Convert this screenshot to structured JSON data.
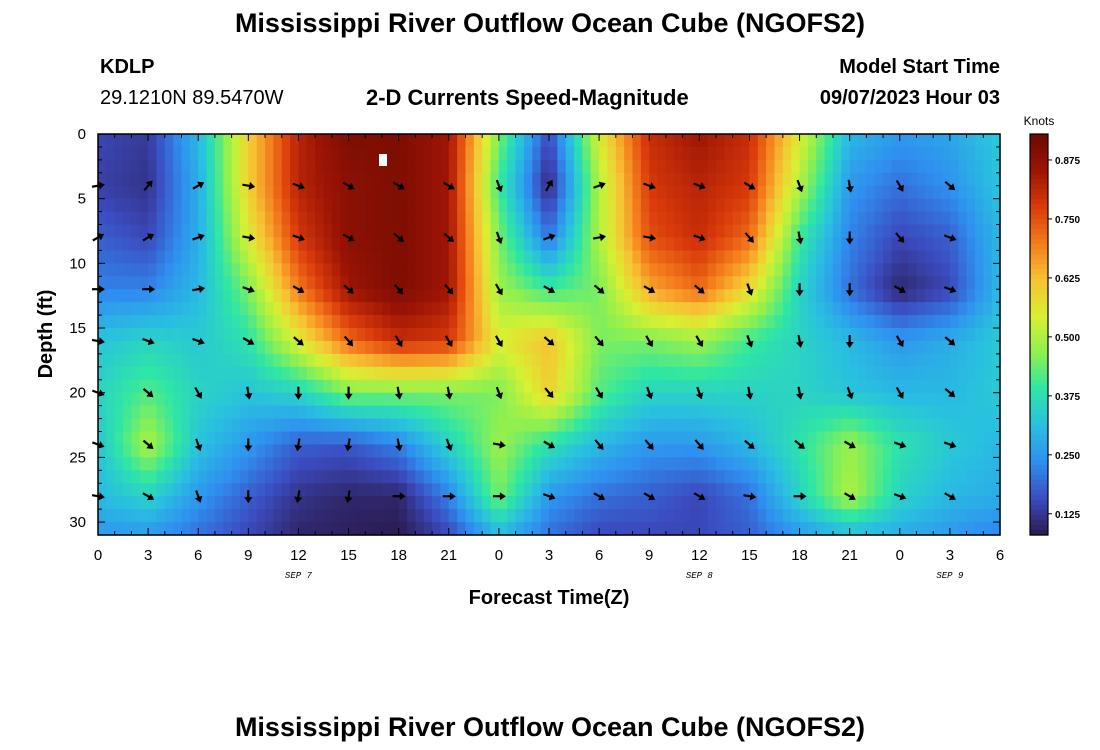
{
  "header": {
    "title": "Mississippi River Outflow Ocean Cube (NGOFS2)",
    "station": "KDLP",
    "coords": "29.1210N  89.5470W",
    "subtitle": "2-D Currents Speed-Magnitude",
    "model_start_label": "Model Start Time",
    "model_start_value": "09/07/2023 Hour 03"
  },
  "footer": {
    "title": "Mississippi River Outflow Ocean Cube (NGOFS2)"
  },
  "chart_data": {
    "type": "heatmap",
    "xlabel": "Forecast Time(Z)",
    "ylabel": "Depth (ft)",
    "x_tick_labels": [
      "0",
      "3",
      "6",
      "9",
      "12",
      "15",
      "18",
      "21",
      "0",
      "3",
      "6",
      "9",
      "12",
      "15",
      "18",
      "21",
      "0",
      "3",
      "6"
    ],
    "date_labels": [
      {
        "label": "SEP 7",
        "hour_index": 12
      },
      {
        "label": "SEP 8",
        "hour_index": 36
      },
      {
        "label": "SEP 9",
        "hour_index": 51
      }
    ],
    "y_ticks": [
      0,
      5,
      10,
      15,
      20,
      25,
      30
    ],
    "ylim": [
      31,
      0
    ],
    "xlim_hours": [
      0,
      54
    ],
    "colorbar": {
      "label": "Knots",
      "ticks": [
        0.125,
        0.25,
        0.375,
        0.5,
        0.625,
        0.75,
        0.875
      ],
      "tick_labels": [
        "0.125",
        "0.250",
        "0.375",
        "0.500",
        "0.625",
        "0.750",
        "0.875"
      ],
      "range": [
        0.08,
        0.93
      ]
    },
    "colormap": [
      "#2b1a4e",
      "#3b4cc0",
      "#2f8ff0",
      "#29c0e0",
      "#2ee6a5",
      "#8ff04f",
      "#d8f032",
      "#f7c233",
      "#f47c1c",
      "#d93a0a",
      "#9c1405",
      "#6b0a02"
    ],
    "arrow_directions_deg": "compass degrees (0 = up/north, 90 = right/east)",
    "speed_field_anchors": {
      "hours": [
        0,
        3,
        6,
        9,
        12,
        15,
        18,
        21,
        24,
        27,
        30,
        33,
        36,
        39,
        42,
        45,
        48,
        51,
        54
      ],
      "depths": [
        0,
        4,
        8,
        12,
        16,
        20,
        24,
        28,
        31
      ],
      "values": [
        [
          0.15,
          0.13,
          0.3,
          0.6,
          0.82,
          0.9,
          0.9,
          0.85,
          0.45,
          0.15,
          0.55,
          0.8,
          0.85,
          0.8,
          0.55,
          0.3,
          0.25,
          0.27,
          0.33
        ],
        [
          0.14,
          0.12,
          0.28,
          0.6,
          0.82,
          0.88,
          0.9,
          0.85,
          0.4,
          0.1,
          0.5,
          0.78,
          0.82,
          0.78,
          0.5,
          0.25,
          0.2,
          0.24,
          0.32
        ],
        [
          0.18,
          0.15,
          0.28,
          0.55,
          0.78,
          0.88,
          0.9,
          0.85,
          0.45,
          0.2,
          0.5,
          0.75,
          0.8,
          0.72,
          0.4,
          0.22,
          0.15,
          0.18,
          0.3
        ],
        [
          0.22,
          0.22,
          0.3,
          0.45,
          0.7,
          0.85,
          0.9,
          0.85,
          0.48,
          0.4,
          0.45,
          0.65,
          0.72,
          0.58,
          0.35,
          0.2,
          0.1,
          0.15,
          0.3
        ],
        [
          0.32,
          0.35,
          0.33,
          0.38,
          0.55,
          0.72,
          0.8,
          0.78,
          0.55,
          0.62,
          0.45,
          0.45,
          0.48,
          0.4,
          0.35,
          0.3,
          0.25,
          0.28,
          0.33
        ],
        [
          0.35,
          0.42,
          0.35,
          0.32,
          0.35,
          0.45,
          0.45,
          0.45,
          0.45,
          0.6,
          0.42,
          0.35,
          0.35,
          0.35,
          0.35,
          0.32,
          0.3,
          0.3,
          0.33
        ],
        [
          0.32,
          0.5,
          0.32,
          0.25,
          0.18,
          0.17,
          0.22,
          0.35,
          0.48,
          0.38,
          0.3,
          0.25,
          0.25,
          0.3,
          0.38,
          0.48,
          0.38,
          0.33,
          0.3
        ],
        [
          0.3,
          0.35,
          0.25,
          0.18,
          0.12,
          0.1,
          0.1,
          0.22,
          0.45,
          0.25,
          0.2,
          0.18,
          0.15,
          0.2,
          0.35,
          0.5,
          0.35,
          0.3,
          0.28
        ],
        [
          0.25,
          0.25,
          0.2,
          0.15,
          0.1,
          0.09,
          0.08,
          0.15,
          0.3,
          0.2,
          0.15,
          0.15,
          0.15,
          0.18,
          0.25,
          0.3,
          0.28,
          0.25,
          0.22
        ]
      ]
    },
    "arrow_grid": {
      "hours": [
        0,
        3,
        6,
        9,
        12,
        15,
        18,
        21,
        24,
        27,
        30,
        33,
        36,
        39,
        42,
        45,
        48,
        51
      ],
      "depths": [
        4,
        8,
        12,
        16,
        20,
        24,
        28
      ],
      "directions": [
        [
          80,
          40,
          60,
          100,
          110,
          120,
          120,
          120,
          160,
          30,
          70,
          110,
          110,
          120,
          160,
          170,
          150,
          130
        ],
        [
          60,
          60,
          70,
          100,
          110,
          120,
          130,
          130,
          160,
          70,
          80,
          100,
          110,
          140,
          170,
          180,
          140,
          110
        ],
        [
          90,
          90,
          80,
          110,
          120,
          130,
          140,
          140,
          150,
          120,
          130,
          120,
          130,
          160,
          180,
          180,
          120,
          110
        ],
        [
          100,
          110,
          110,
          120,
          130,
          140,
          150,
          150,
          150,
          130,
          140,
          150,
          150,
          160,
          170,
          180,
          150,
          130
        ],
        [
          110,
          130,
          150,
          170,
          180,
          180,
          170,
          170,
          160,
          140,
          150,
          160,
          160,
          170,
          170,
          160,
          150,
          130
        ],
        [
          110,
          130,
          160,
          180,
          190,
          190,
          170,
          160,
          100,
          120,
          140,
          140,
          140,
          130,
          130,
          120,
          110,
          110
        ],
        [
          100,
          120,
          160,
          180,
          190,
          190,
          90,
          90,
          90,
          110,
          120,
          120,
          120,
          100,
          90,
          120,
          110,
          120
        ]
      ]
    }
  }
}
